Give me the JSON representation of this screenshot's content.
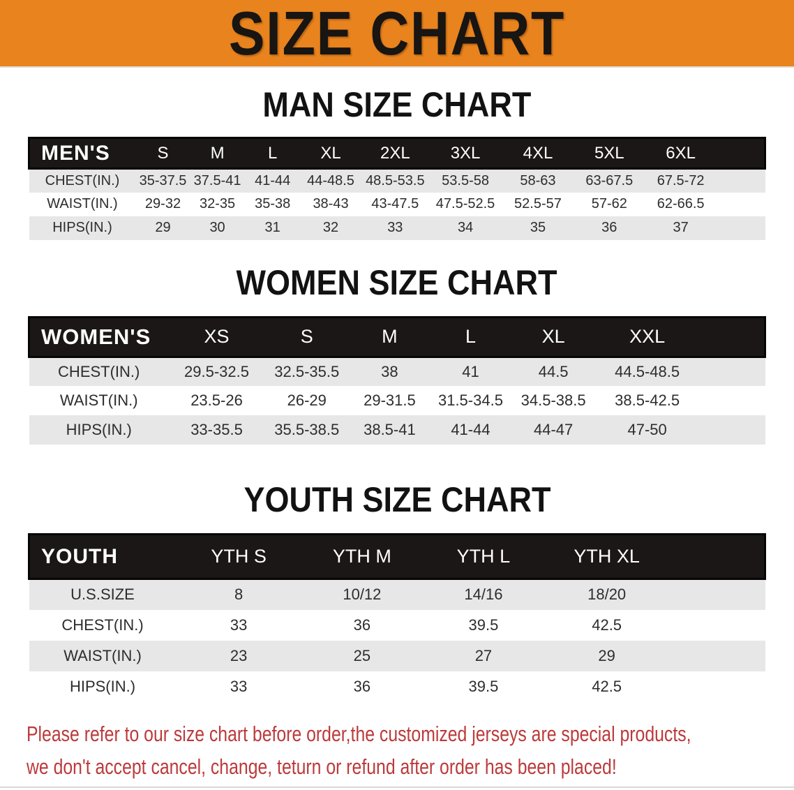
{
  "banner": {
    "title": "SIZE CHART",
    "bg_color": "#E8831E",
    "text_color": "#181512"
  },
  "sections": [
    {
      "heading": "MAN SIZE CHART",
      "table": {
        "corner_label": "MEN'S",
        "sizes": [
          "S",
          "M",
          "L",
          "XL",
          "2XL",
          "3XL",
          "4XL",
          "5XL",
          "6XL"
        ],
        "rows": [
          {
            "label": "CHEST(IN.)",
            "values": [
              "35-37.5",
              "37.5-41",
              "41-44",
              "44-48.5",
              "48.5-53.5",
              "53.5-58",
              "58-63",
              "63-67.5",
              "67.5-72"
            ]
          },
          {
            "label": "WAIST(IN.)",
            "values": [
              "29-32",
              "32-35",
              "35-38",
              "38-43",
              "43-47.5",
              "47.5-52.5",
              "52.5-57",
              "57-62",
              "62-66.5"
            ]
          },
          {
            "label": "HIPS(IN.)",
            "values": [
              "29",
              "30",
              "31",
              "32",
              "33",
              "34",
              "35",
              "36",
              "37"
            ]
          }
        ]
      }
    },
    {
      "heading": "WOMEN SIZE CHART",
      "table": {
        "corner_label": "WOMEN'S",
        "sizes": [
          "XS",
          "S",
          "M",
          "L",
          "XL",
          "XXL"
        ],
        "rows": [
          {
            "label": "CHEST(IN.)",
            "values": [
              "29.5-32.5",
              "32.5-35.5",
              "38",
              "41",
              "44.5",
              "44.5-48.5"
            ]
          },
          {
            "label": "WAIST(IN.)",
            "values": [
              "23.5-26",
              "26-29",
              "29-31.5",
              "31.5-34.5",
              "34.5-38.5",
              "38.5-42.5"
            ]
          },
          {
            "label": "HIPS(IN.)",
            "values": [
              "33-35.5",
              "35.5-38.5",
              "38.5-41",
              "41-44",
              "44-47",
              "47-50"
            ]
          }
        ]
      }
    },
    {
      "heading": "YOUTH SIZE CHART",
      "table": {
        "corner_label": "YOUTH",
        "sizes": [
          "YTH S",
          "YTH M",
          "YTH L",
          "YTH XL"
        ],
        "rows": [
          {
            "label": "U.S.SIZE",
            "values": [
              "8",
              "10/12",
              "14/16",
              "18/20"
            ]
          },
          {
            "label": "CHEST(IN.)",
            "values": [
              "33",
              "36",
              "39.5",
              "42.5"
            ]
          },
          {
            "label": "WAIST(IN.)",
            "values": [
              "23",
              "25",
              "27",
              "29"
            ]
          },
          {
            "label": "HIPS(IN.)",
            "values": [
              "33",
              "36",
              "39.5",
              "42.5"
            ]
          }
        ]
      }
    }
  ],
  "footer": {
    "lines": [
      "Please refer to our size chart before order,the customized jerseys are special products,",
      "we don't accept cancel, change, teturn or refund after order has been placed!"
    ],
    "text_color": "#bc3a3b"
  },
  "colors": {
    "header_bar": "#1b1716",
    "row_stripe": "#e7e7e7"
  }
}
